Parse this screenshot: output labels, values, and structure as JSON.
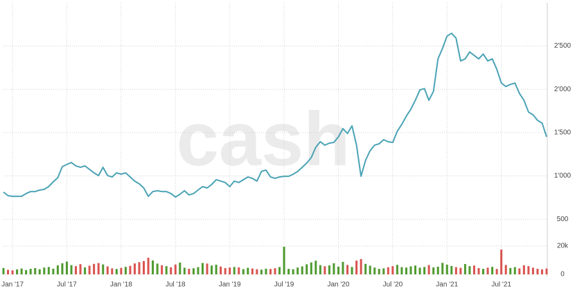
{
  "chart_data": {
    "type": "line",
    "watermark": "cash",
    "categories": [
      null,
      null,
      "Jan '17",
      null,
      null,
      null,
      null,
      null,
      null,
      null,
      null,
      null,
      null,
      null,
      "Jul '17",
      null,
      null,
      null,
      null,
      null,
      null,
      null,
      null,
      null,
      null,
      null,
      "Jan '18",
      null,
      null,
      null,
      null,
      null,
      null,
      null,
      null,
      null,
      null,
      null,
      "Jul '18",
      null,
      null,
      null,
      null,
      null,
      null,
      null,
      null,
      null,
      null,
      null,
      "Jan '19",
      null,
      null,
      null,
      null,
      null,
      null,
      null,
      null,
      null,
      null,
      null,
      "Jul '19",
      null,
      null,
      null,
      null,
      null,
      null,
      null,
      null,
      null,
      null,
      null,
      "Jan '20",
      null,
      null,
      null,
      null,
      null,
      null,
      null,
      null,
      null,
      null,
      null,
      "Jul '20",
      null,
      null,
      null,
      null,
      null,
      null,
      null,
      null,
      null,
      null,
      null,
      "Jan '21",
      null,
      null,
      null,
      null,
      null,
      null,
      null,
      null,
      null,
      null,
      null,
      "Jul '21",
      null,
      null,
      null,
      null,
      null,
      null,
      null,
      null,
      null,
      null
    ],
    "values": [
      813,
      773,
      765,
      765,
      765,
      797,
      820,
      820,
      837,
      845,
      877,
      932,
      980,
      1108,
      1132,
      1155,
      1116,
      1100,
      1116,
      1076,
      1036,
      1004,
      1100,
      1004,
      988,
      1036,
      1020,
      1036,
      988,
      940,
      909,
      861,
      765,
      820,
      829,
      820,
      820,
      797,
      757,
      789,
      829,
      781,
      797,
      837,
      877,
      861,
      901,
      956,
      940,
      924,
      877,
      940,
      924,
      956,
      988,
      972,
      940,
      1052,
      1068,
      988,
      972,
      988,
      996,
      996,
      1020,
      1052,
      1100,
      1148,
      1212,
      1331,
      1395,
      1355,
      1379,
      1387,
      1451,
      1546,
      1490,
      1578,
      1355,
      996,
      1180,
      1291,
      1355,
      1371,
      1419,
      1395,
      1387,
      1514,
      1594,
      1690,
      1769,
      1873,
      1992,
      2008,
      1873,
      1976,
      2351,
      2471,
      2614,
      2646,
      2590,
      2327,
      2351,
      2431,
      2391,
      2351,
      2407,
      2327,
      2351,
      2231,
      2072,
      2032,
      2056,
      2072,
      1952,
      1873,
      1737,
      1706,
      1642,
      1610,
      1451
    ],
    "color": "#4ba3b5",
    "ylim": [
      0,
      3000
    ],
    "yticks": [
      500,
      {
        "value": 1000,
        "label": "1'000"
      },
      {
        "value": 1500,
        "label": "1'500"
      },
      {
        "value": 2000,
        "label": "2'000"
      },
      {
        "value": 2500,
        "label": "2'500"
      }
    ],
    "grid": true,
    "volume": {
      "values": [
        4500,
        3200,
        2800,
        3500,
        4100,
        3000,
        3900,
        4400,
        3600,
        4800,
        5200,
        4000,
        6300,
        7800,
        9000,
        6500,
        5800,
        7200,
        4900,
        6100,
        7400,
        8000,
        7000,
        5600,
        4200,
        3800,
        4600,
        5300,
        6000,
        7700,
        8600,
        9400,
        11700,
        9800,
        7600,
        6400,
        5800,
        5000,
        6900,
        8300,
        4700,
        3900,
        4300,
        5100,
        8000,
        7600,
        6200,
        6800,
        5500,
        4400,
        4800,
        5200,
        4900,
        3700,
        4600,
        4100,
        3600,
        3300,
        4000,
        3800,
        4300,
        5200,
        19500,
        3900,
        3600,
        4800,
        5600,
        7100,
        8400,
        9600,
        6500,
        5700,
        6300,
        7800,
        5400,
        8800,
        6600,
        5200,
        9700,
        10800,
        7400,
        6100,
        4800,
        3900,
        4200,
        5000,
        5800,
        6700,
        5100,
        4800,
        5600,
        6200,
        4700,
        5200,
        6500,
        4900,
        5400,
        8100,
        6800,
        5900,
        5100,
        4600,
        7300,
        5800,
        6200,
        4400,
        3900,
        4700,
        5300,
        3800,
        17500,
        6600,
        4500,
        5100,
        4200,
        6400,
        5800,
        4700,
        3900,
        3500,
        4100
      ],
      "up_color": "#4e9a2f",
      "down_color": "#d9534f",
      "ylim": [
        0,
        20000
      ],
      "yticks": [
        0,
        {
          "value": 20000,
          "label": "20k"
        }
      ]
    }
  }
}
